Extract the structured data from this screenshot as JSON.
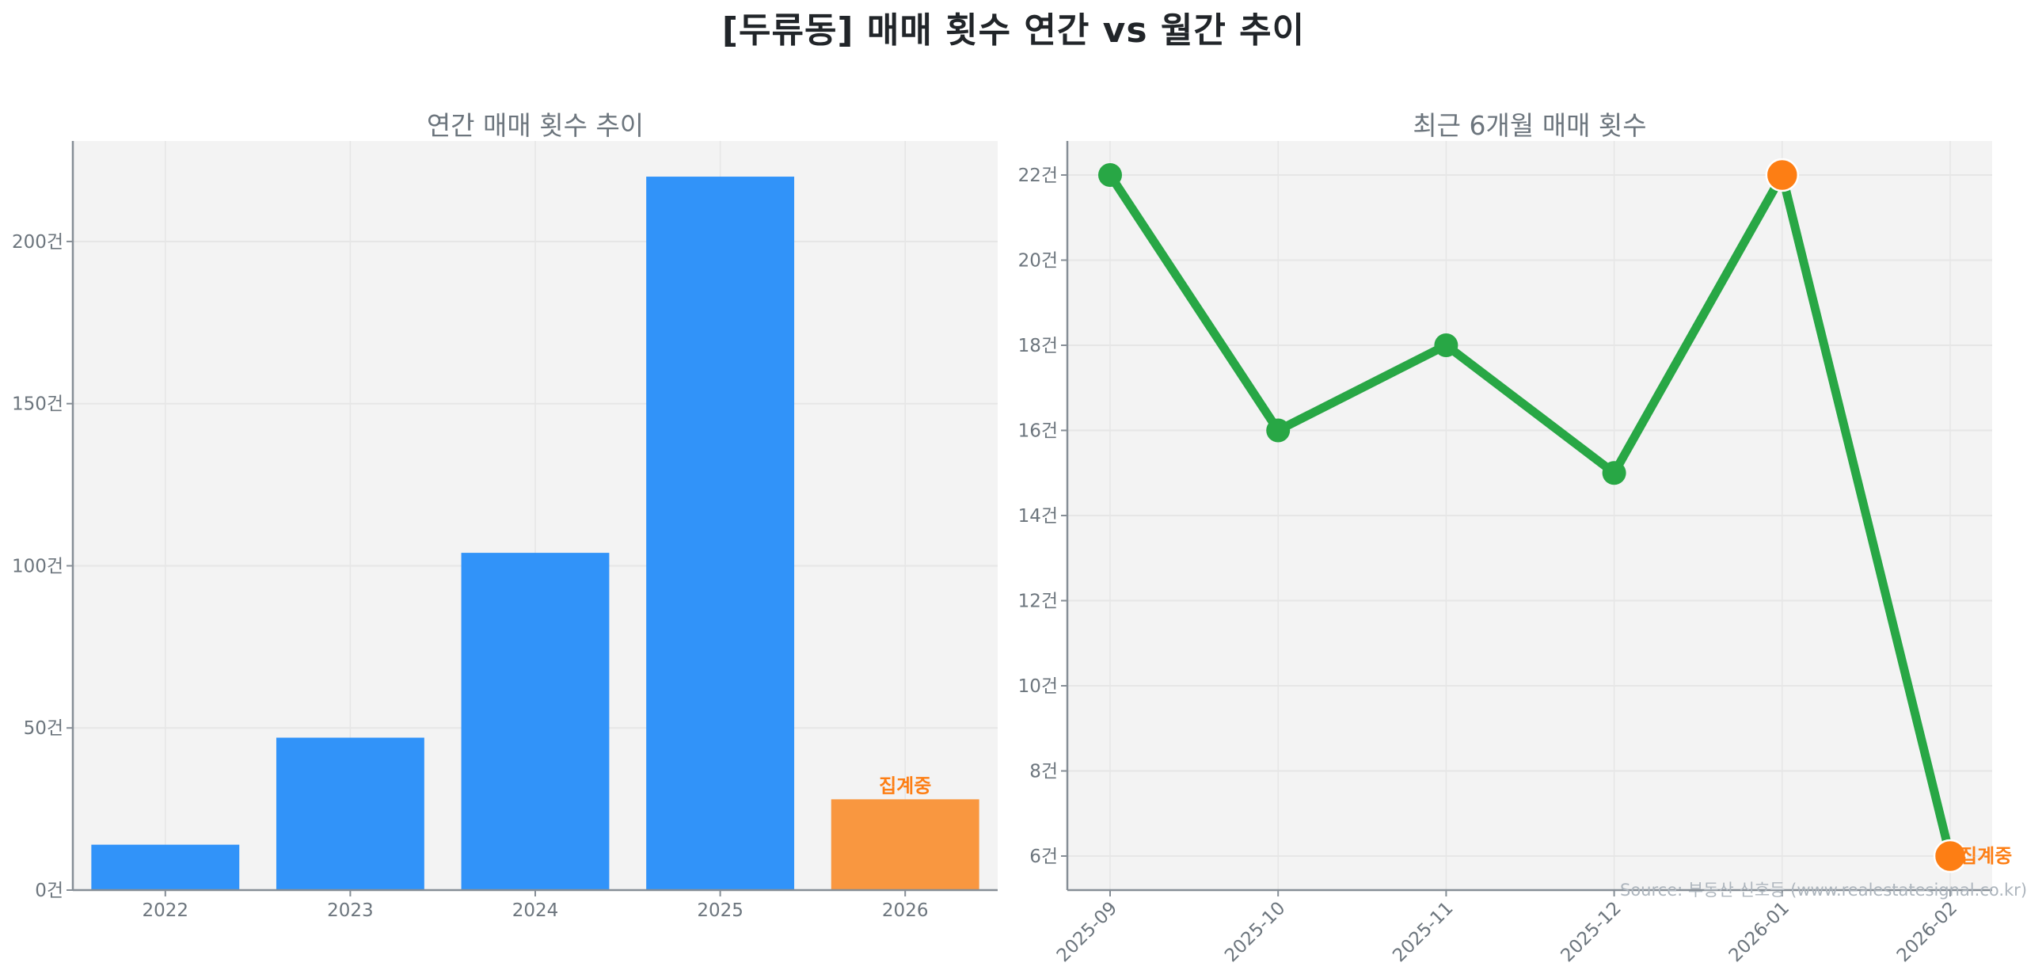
{
  "title": "[두류동] 매매 횟수 연간 vs 월간 추이",
  "source": "Source: 부동산 신호등 (www.realestatesignal.co.kr)",
  "colors": {
    "bar": "#3193f9",
    "bar_partial": "#f99740",
    "line": "#28a745",
    "marker_highlight": "#fd7e14",
    "annot": "#fd7e14",
    "plot_bg": "#f3f3f3",
    "grid": "#e6e6e6",
    "axis": "#868e96",
    "text": "#6c757d"
  },
  "chart_data": [
    {
      "type": "bar",
      "title": "연간 매매 횟수 추이",
      "xlabel": "",
      "ylabel": "",
      "categories": [
        "2022",
        "2023",
        "2024",
        "2025",
        "2026"
      ],
      "values": [
        14,
        47,
        104,
        220,
        28
      ],
      "ylim": [
        0,
        231
      ],
      "yticks": [
        0,
        50,
        100,
        150,
        200
      ],
      "ytick_suffix": "건",
      "grid": true,
      "annotations": [
        {
          "category": "2026",
          "text": "집계중"
        }
      ],
      "partial_category": "2026"
    },
    {
      "type": "line",
      "title": "최근 6개월 매매 횟수",
      "xlabel": "",
      "ylabel": "",
      "x": [
        "2025-09",
        "2025-10",
        "2025-11",
        "2025-12",
        "2026-01",
        "2026-02"
      ],
      "values": [
        22,
        16,
        18,
        15,
        22,
        6
      ],
      "ylim": [
        5.2,
        22.8
      ],
      "yticks": [
        6,
        8,
        10,
        12,
        14,
        16,
        18,
        20,
        22
      ],
      "ytick_suffix": "건",
      "grid": true,
      "highlight_points": [
        "2026-01",
        "2026-02"
      ],
      "annotations": [
        {
          "x": "2026-02",
          "text": "집계중"
        }
      ]
    }
  ]
}
